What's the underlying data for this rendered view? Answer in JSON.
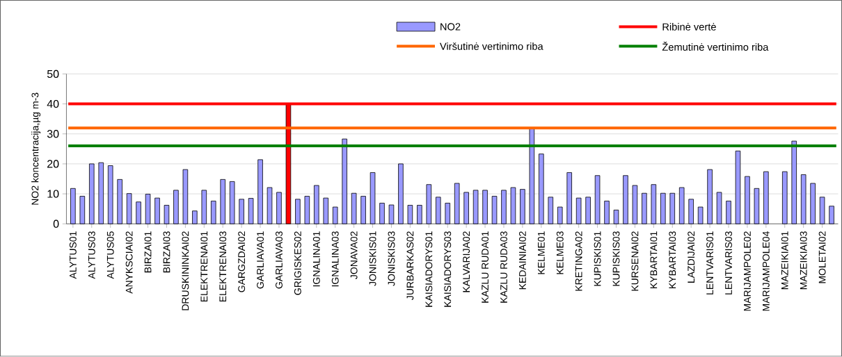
{
  "chart_data": {
    "type": "bar",
    "ylabel": "NO2 koncentracija,µg m-3",
    "categories": [
      "ALYTUS01",
      null,
      "ALYTUS03",
      null,
      "ALYTUS05",
      null,
      "ANYKSCIAI02",
      null,
      "BIRZAI01",
      null,
      "BIRZAI03",
      null,
      "DRUSKININKAI02",
      null,
      "ELEKTRENAI01",
      null,
      "ELEKTRENAI03",
      null,
      "GARGZDAI02",
      null,
      "GARLIAVA01",
      null,
      "GARLIAVA03",
      null,
      "GRIGISKES02",
      null,
      "IGNALINA01",
      null,
      "IGNALINA03",
      null,
      "JONAVA02",
      null,
      "JONISKIS01",
      null,
      "JONISKIS03",
      null,
      "JURBARKAS02",
      null,
      "KAISIADORYS01",
      null,
      "KAISIADORYS03",
      null,
      "KALVARIJA02",
      null,
      "KAZLU RUDA01",
      null,
      "KAZLU RUDA03",
      null,
      "KEDAINIAI02",
      null,
      "KELME01",
      null,
      "KELME03",
      null,
      "KRETINGA02",
      null,
      "KUPISKIS01",
      null,
      "KUPISKIS03",
      null,
      "KURSENAI02",
      null,
      "KYBARTAI01",
      null,
      "KYBARTAI03",
      null,
      "LAZDIJAI02",
      null,
      "LENTVARIS01",
      null,
      "LENTVARIS03",
      null,
      "MARIJAMPOLE02",
      null,
      "MARIJAMPOLE04",
      null,
      "MAZEIKIAI01",
      null,
      "MAZEIKIAI03",
      null,
      "MOLETAI02",
      null
    ],
    "series": [
      {
        "name": "NO2",
        "color": "#9999ff",
        "values": [
          11.8,
          9.2,
          20.0,
          20.4,
          19.4,
          14.8,
          10.1,
          7.3,
          9.9,
          8.6,
          6.2,
          11.2,
          18.1,
          4.3,
          11.2,
          7.6,
          14.8,
          14.1,
          8.2,
          8.5,
          21.4,
          12.1,
          10.5,
          40,
          8.2,
          9.2,
          12.8,
          8.6,
          5.6,
          28.3,
          10.2,
          9.2,
          17.1,
          6.9,
          6.3,
          20.0,
          6.2,
          6.2,
          13.1,
          8.9,
          6.9,
          13.5,
          10.5,
          11.2,
          11.2,
          9.2,
          11.2,
          12.1,
          11.5,
          32.1,
          23.3,
          8.9,
          5.6,
          17.1,
          8.6,
          8.9,
          16.1,
          7.6,
          4.6,
          16.1,
          12.8,
          10.2,
          13.1,
          10.2,
          10.2,
          12.1,
          8.2,
          5.6,
          18.1,
          10.5,
          7.6,
          24.3,
          15.8,
          11.8,
          17.4,
          null,
          17.4,
          27.6,
          16.4,
          13.5,
          8.9,
          5.9
        ],
        "colors": [
          "#9999ff",
          "#9999ff",
          "#9999ff",
          "#9999ff",
          "#9999ff",
          "#9999ff",
          "#9999ff",
          "#9999ff",
          "#9999ff",
          "#9999ff",
          "#9999ff",
          "#9999ff",
          "#9999ff",
          "#9999ff",
          "#9999ff",
          "#9999ff",
          "#9999ff",
          "#9999ff",
          "#9999ff",
          "#9999ff",
          "#9999ff",
          "#9999ff",
          "#9999ff",
          "#ff0000",
          "#9999ff",
          "#9999ff",
          "#9999ff",
          "#9999ff",
          "#9999ff",
          "#9999ff",
          "#9999ff",
          "#9999ff",
          "#9999ff",
          "#9999ff",
          "#9999ff",
          "#9999ff",
          "#9999ff",
          "#9999ff",
          "#9999ff",
          "#9999ff",
          "#9999ff",
          "#9999ff",
          "#9999ff",
          "#9999ff",
          "#9999ff",
          "#9999ff",
          "#9999ff",
          "#9999ff",
          "#9999ff",
          "#9999ff",
          "#9999ff",
          "#9999ff",
          "#9999ff",
          "#9999ff",
          "#9999ff",
          "#9999ff",
          "#9999ff",
          "#9999ff",
          "#9999ff",
          "#9999ff",
          "#9999ff",
          "#9999ff",
          "#9999ff",
          "#9999ff",
          "#9999ff",
          "#9999ff",
          "#9999ff",
          "#9999ff",
          "#9999ff",
          "#9999ff",
          "#9999ff",
          "#9999ff",
          "#9999ff",
          "#9999ff",
          "#9999ff",
          "#9999ff",
          "#9999ff",
          "#9999ff",
          "#9999ff",
          "#9999ff",
          "#9999ff",
          "#9999ff"
        ]
      }
    ],
    "ref_lines": [
      {
        "axis": "y",
        "value": 40,
        "label": "Ribinė vertė",
        "color": "#ff0000"
      },
      {
        "axis": "y",
        "value": 32,
        "label": "Viršutinė vertinimo riba",
        "color": "#ff6600"
      },
      {
        "axis": "y",
        "value": 26,
        "label": "Žemutinė vertinimo riba",
        "color": "#008000"
      }
    ],
    "ylim": [
      0,
      50
    ],
    "yticks": [
      0,
      10,
      20,
      30,
      40,
      50
    ],
    "grid": "y",
    "legend": "top"
  }
}
